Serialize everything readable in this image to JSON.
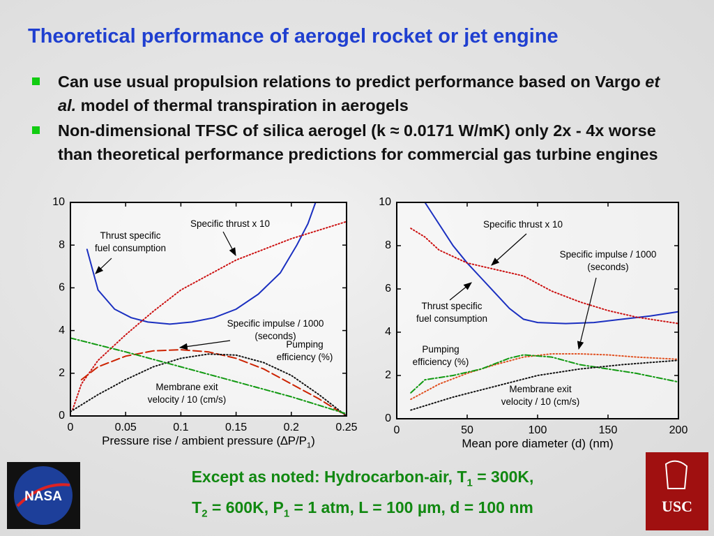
{
  "title": "Theoretical performance of aerogel rocket or jet engine",
  "bullets": [
    [
      "Can use usual propulsion relations to predict performance based on Vargo ",
      "et al.",
      " model of thermal transpiration in aerogels"
    ],
    [
      "Non-dimensional TFSC of silica aerogel (k ≈ 0.0171 W/mK) only 2x - 4x worse than theoretical performance predictions for commercial gas turbine engines"
    ]
  ],
  "footer": [
    [
      "Except as noted:  Hydrocarbon-air, T",
      "1",
      " = 300K,"
    ],
    [
      "T",
      "2",
      " = 600K, P",
      "1",
      " = 1 atm, L = 100 µm, d = 100 nm"
    ]
  ],
  "logos": {
    "left": "NASA",
    "right": "USC"
  },
  "chart_data": [
    {
      "type": "line",
      "xlabel": [
        "Pressure rise / ambient pressure (∆P/P",
        "1",
        ")"
      ],
      "xlim": [
        0,
        0.25
      ],
      "xticks": [
        0,
        0.05,
        0.1,
        0.15,
        0.2,
        0.25
      ],
      "ylim": [
        0,
        10
      ],
      "yticks": [
        0,
        2,
        4,
        6,
        8,
        10
      ],
      "series": [
        {
          "name": "Thrust specific\nfuel consumption",
          "color": "#1a2fc0",
          "style": "solid",
          "x": [
            0.015,
            0.025,
            0.04,
            0.055,
            0.07,
            0.09,
            0.11,
            0.13,
            0.15,
            0.17,
            0.19,
            0.205,
            0.215,
            0.222
          ],
          "values": [
            7.8,
            5.9,
            5.0,
            4.6,
            4.4,
            4.3,
            4.4,
            4.6,
            5.0,
            5.7,
            6.7,
            8.0,
            9.0,
            10
          ]
        },
        {
          "name": "Specific thrust x 10",
          "color": "#cc1111",
          "style": "dotted",
          "x": [
            0.002,
            0.01,
            0.025,
            0.05,
            0.075,
            0.1,
            0.125,
            0.15,
            0.175,
            0.2,
            0.225,
            0.25
          ],
          "values": [
            0.3,
            1.5,
            2.6,
            3.8,
            4.9,
            5.9,
            6.6,
            7.3,
            7.8,
            8.3,
            8.7,
            9.1
          ]
        },
        {
          "name": "Specific impulse / 1000\n(seconds)",
          "color": "#cc2200",
          "style": "dashed",
          "x": [
            0.01,
            0.025,
            0.05,
            0.075,
            0.1,
            0.125,
            0.15,
            0.175,
            0.2,
            0.225,
            0.25
          ],
          "values": [
            1.7,
            2.3,
            2.8,
            3.05,
            3.1,
            3.0,
            2.7,
            2.2,
            1.5,
            0.8,
            0
          ]
        },
        {
          "name": "Pumping\nefficiency (%)",
          "color": "#111111",
          "style": "dotted",
          "x": [
            0,
            0.025,
            0.05,
            0.075,
            0.1,
            0.125,
            0.15,
            0.175,
            0.2,
            0.225,
            0.25
          ],
          "values": [
            0.2,
            1.0,
            1.7,
            2.3,
            2.7,
            2.9,
            2.85,
            2.5,
            1.9,
            1.0,
            0
          ]
        },
        {
          "name": "Membrane exit\nvelocity / 10 (cm/s)",
          "color": "#119911",
          "style": "dashdot",
          "x": [
            0,
            0.05,
            0.1,
            0.15,
            0.2,
            0.25
          ],
          "values": [
            3.65,
            3.0,
            2.3,
            1.6,
            0.9,
            0.1
          ]
        }
      ]
    },
    {
      "type": "line",
      "xlabel": "Mean pore diameter (d) (nm)",
      "xlim": [
        0,
        200
      ],
      "xticks": [
        0,
        50,
        100,
        150,
        200
      ],
      "ylim": [
        0,
        10
      ],
      "yticks": [
        0,
        2,
        4,
        6,
        8,
        10
      ],
      "series": [
        {
          "name": "Thrust specific\nfuel consumption",
          "color": "#1a2fc0",
          "style": "solid",
          "x": [
            20,
            30,
            40,
            50,
            60,
            70,
            80,
            90,
            100,
            120,
            140,
            160,
            180,
            200
          ],
          "values": [
            10,
            9,
            8,
            7.2,
            6.5,
            5.8,
            5.1,
            4.6,
            4.45,
            4.4,
            4.45,
            4.6,
            4.75,
            4.95
          ]
        },
        {
          "name": "Specific thrust x 10",
          "color": "#cc1111",
          "style": "dotted",
          "x": [
            10,
            20,
            30,
            50,
            70,
            90,
            110,
            130,
            150,
            170,
            200
          ],
          "values": [
            8.8,
            8.4,
            7.8,
            7.2,
            6.9,
            6.6,
            5.9,
            5.4,
            5.0,
            4.7,
            4.4
          ]
        },
        {
          "name": "Specific impulse / 1000\n(seconds)",
          "color": "#e05020",
          "style": "dotted",
          "x": [
            10,
            30,
            50,
            70,
            90,
            110,
            130,
            150,
            170,
            200
          ],
          "values": [
            0.9,
            1.6,
            2.1,
            2.5,
            2.85,
            3.0,
            3.0,
            2.95,
            2.85,
            2.75
          ]
        },
        {
          "name": "Pumping\nefficiency (%)",
          "color": "#119911",
          "style": "dashdot",
          "x": [
            10,
            20,
            40,
            60,
            80,
            90,
            110,
            130,
            150,
            170,
            200
          ],
          "values": [
            1.2,
            1.8,
            2.0,
            2.3,
            2.8,
            2.95,
            2.85,
            2.5,
            2.3,
            2.1,
            1.7
          ]
        },
        {
          "name": "Membrane exit\nvelocity / 10 (cm/s)",
          "color": "#111111",
          "style": "dotted",
          "x": [
            10,
            40,
            70,
            100,
            130,
            160,
            200
          ],
          "values": [
            0.4,
            1.0,
            1.5,
            2.0,
            2.3,
            2.5,
            2.7
          ]
        }
      ]
    }
  ]
}
